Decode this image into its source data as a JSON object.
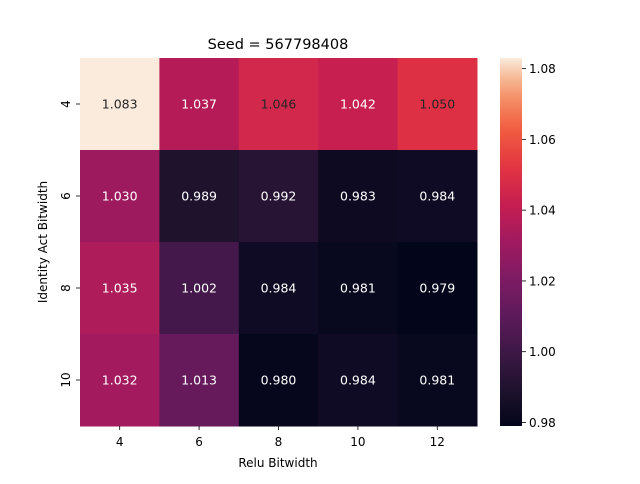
{
  "chart_data": {
    "type": "heatmap",
    "title": "Seed = 567798408",
    "xlabel": "Relu Bitwidth",
    "ylabel": "Identity Act Bitwidth",
    "x_categories": [
      "4",
      "6",
      "8",
      "10",
      "12"
    ],
    "y_categories": [
      "4",
      "6",
      "8",
      "10"
    ],
    "values": [
      [
        1.083,
        1.037,
        1.046,
        1.042,
        1.05
      ],
      [
        1.03,
        0.989,
        0.992,
        0.983,
        0.984
      ],
      [
        1.035,
        1.002,
        0.984,
        0.981,
        0.979
      ],
      [
        1.032,
        1.013,
        0.98,
        0.984,
        0.981
      ]
    ],
    "annotations": [
      [
        "1.083",
        "1.037",
        "1.046",
        "1.042",
        "1.050"
      ],
      [
        "1.030",
        "0.989",
        "0.992",
        "0.983",
        "0.984"
      ],
      [
        "1.035",
        "1.002",
        "0.984",
        "0.981",
        "0.979"
      ],
      [
        "1.032",
        "1.013",
        "0.980",
        "0.984",
        "0.981"
      ]
    ],
    "colormap": "rocket",
    "vmin": 0.979,
    "vmax": 1.083,
    "colorbar_ticks": [
      "0.98",
      "1.00",
      "1.02",
      "1.04",
      "1.06",
      "1.08"
    ],
    "colorbar_tick_values": [
      0.98,
      1.0,
      1.02,
      1.04,
      1.06,
      1.08
    ]
  }
}
